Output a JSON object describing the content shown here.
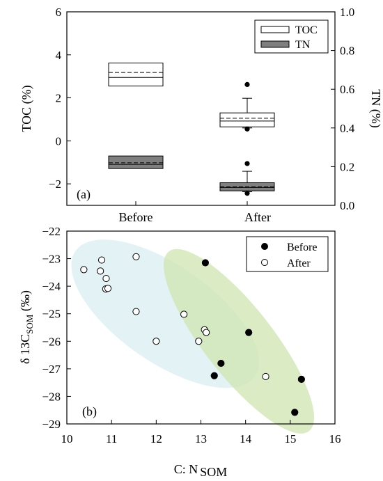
{
  "chart_data": [
    {
      "type": "box",
      "panel_label": "(a)",
      "categories": [
        "Before",
        "After"
      ],
      "y_left": {
        "label": "TOC (%)",
        "lim": [
          -3,
          6
        ],
        "ticks": [
          -2,
          0,
          2,
          4,
          6
        ]
      },
      "y_right": {
        "label": "TN (%)",
        "lim": [
          0.0,
          1.0
        ],
        "ticks": [
          "0.0",
          "0.2",
          "0.4",
          "0.6",
          "0.8",
          "1.0"
        ]
      },
      "legend": {
        "position": "top-right",
        "entries": [
          "TOC",
          "TN"
        ]
      },
      "colors": {
        "TOC": "#ffffff",
        "TN": "#7f7f7f"
      },
      "series": [
        {
          "name": "TOC",
          "axis": "left",
          "boxes": [
            {
              "category": "Before",
              "q1": 2.55,
              "median": 2.95,
              "mean": 3.18,
              "q3": 3.62
            },
            {
              "category": "After",
              "q1": 0.65,
              "median": 0.92,
              "mean": 1.05,
              "q3": 1.3,
              "whisker_low": 0.6,
              "whisker_high": 1.98,
              "outliers": [
                2.62,
                0.55
              ]
            }
          ]
        },
        {
          "name": "TN",
          "axis": "right",
          "boxes": [
            {
              "category": "Before",
              "q1": 0.19,
              "median": 0.212,
              "mean": 0.22,
              "q3": 0.255
            },
            {
              "category": "After",
              "q1": 0.075,
              "median": 0.092,
              "mean": 0.096,
              "q3": 0.117,
              "whisker_low": 0.07,
              "whisker_high": 0.176,
              "outliers": [
                0.216,
                0.062
              ]
            }
          ]
        }
      ]
    },
    {
      "type": "scatter",
      "panel_label": "(b)",
      "xlabel": "C: N",
      "xlabel_sub": "SOM",
      "ylabel": "δ 13C",
      "ylabel_sub": "SOM",
      "ylabel_suffix": " (‰)",
      "xlim": [
        10,
        16
      ],
      "ylim": [
        -29,
        -22
      ],
      "xticks": [
        10,
        11,
        12,
        13,
        14,
        15,
        16
      ],
      "yticks": [
        -22,
        -23,
        -24,
        -25,
        -26,
        -27,
        -28,
        -29
      ],
      "legend": {
        "position": "top-right"
      },
      "colors": {
        "before_ellipse": "#cfe6b0",
        "after_ellipse": "#d8eef2"
      },
      "series": [
        {
          "name": "Before",
          "marker": "filled",
          "points": [
            [
              13.1,
              -23.15
            ],
            [
              14.07,
              -25.68
            ],
            [
              13.45,
              -26.8
            ],
            [
              13.3,
              -27.25
            ],
            [
              15.25,
              -27.38
            ],
            [
              15.1,
              -28.58
            ]
          ]
        },
        {
          "name": "After",
          "marker": "open",
          "points": [
            [
              10.38,
              -23.4
            ],
            [
              10.75,
              -23.45
            ],
            [
              10.78,
              -23.05
            ],
            [
              10.88,
              -23.72
            ],
            [
              10.87,
              -24.1
            ],
            [
              10.92,
              -24.08
            ],
            [
              11.55,
              -22.93
            ],
            [
              11.55,
              -24.92
            ],
            [
              12.0,
              -26.0
            ],
            [
              12.62,
              -25.02
            ],
            [
              12.95,
              -26.0
            ],
            [
              13.08,
              -25.58
            ],
            [
              13.12,
              -25.68
            ],
            [
              14.45,
              -27.28
            ]
          ]
        }
      ]
    }
  ]
}
